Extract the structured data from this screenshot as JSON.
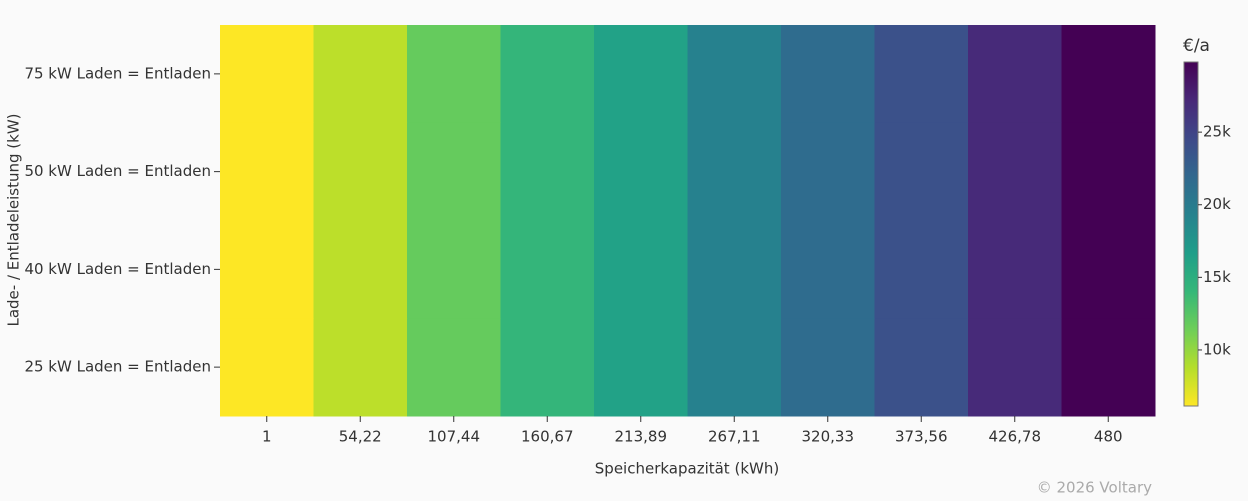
{
  "chart_data": {
    "type": "heatmap",
    "x_label": "Speicherkapazität (kWh)",
    "y_label": "Lade- / Entladeleistung (kW)",
    "x": [
      "1",
      "54,22",
      "107,44",
      "160,67",
      "213,89",
      "267,11",
      "320,33",
      "373,56",
      "426,78",
      "480"
    ],
    "y": [
      "75 kW Laden = Entladen",
      "50 kW Laden = Entladen",
      "40 kW Laden = Entladen",
      "25 kW Laden = Entladen"
    ],
    "z": [
      [
        6140,
        8500,
        11800,
        14200,
        16300,
        19400,
        21500,
        23900,
        27000,
        29830
      ],
      [
        6140,
        8500,
        11800,
        14200,
        16300,
        19400,
        21500,
        23900,
        27000,
        29830
      ],
      [
        6140,
        8500,
        11800,
        14200,
        16300,
        19400,
        21500,
        23900,
        27000,
        29830
      ],
      [
        6140,
        8500,
        11800,
        14200,
        16300,
        19400,
        21500,
        23900,
        27000,
        29830
      ]
    ],
    "colorbar_title": "€/a",
    "zlim": [
      6140,
      29830
    ],
    "zticks": [
      {
        "value": 10000,
        "label": "10k"
      },
      {
        "value": 15000,
        "label": "15k"
      },
      {
        "value": 20000,
        "label": "20k"
      },
      {
        "value": 25000,
        "label": "25k"
      }
    ],
    "colorscale": [
      "#fde725",
      "#b5de2b",
      "#6ece58",
      "#35b779",
      "#1f9e89",
      "#26828e",
      "#31688e",
      "#3e4989",
      "#482878",
      "#440154"
    ],
    "watermark": "© 2026 Voltary"
  }
}
